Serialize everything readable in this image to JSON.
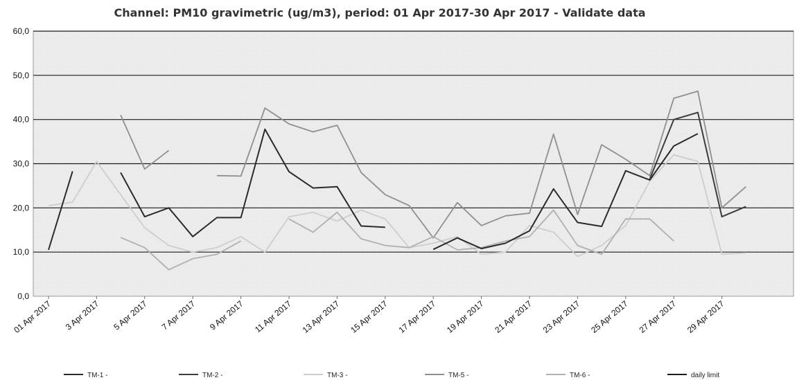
{
  "chart_data": {
    "type": "line",
    "title": "Channel: PM10 gravimetric (ug/m3), period: 01 Apr 2017-30 Apr 2017 - Validate data",
    "xlabel": "",
    "ylabel": "",
    "ylim": [
      0,
      60
    ],
    "y_ticks": [
      "0,0",
      "10,0",
      "20,0",
      "30,0",
      "40,0",
      "50,0",
      "60,0"
    ],
    "x_tick_labels": [
      "01 Apr 2017",
      "3 Apr 2017",
      "5 Apr 2017",
      "7 Apr 2017",
      "9 Apr 2017",
      "11 Apr 2017",
      "13 Apr 2017",
      "15 Apr 2017",
      "17 Apr 2017",
      "19 Apr 2017",
      "21 Apr 2017",
      "23 Apr 2017",
      "25 Apr 2017",
      "27 Apr 2017",
      "29 Apr 2017"
    ],
    "x_tick_days": [
      1,
      3,
      5,
      7,
      9,
      11,
      13,
      15,
      17,
      19,
      21,
      23,
      25,
      27,
      29
    ],
    "grid": "horizontal",
    "legend_position": "bottom",
    "series": [
      {
        "name": "TM-1 -",
        "color": "#2a2a2a",
        "values": [
          10.5,
          28.3,
          null,
          28.0,
          18.0,
          20.0,
          13.5,
          17.8,
          17.8,
          37.8,
          28.2,
          24.5,
          24.8,
          15.9,
          15.6,
          null,
          10.6,
          13.2,
          10.8,
          12.0,
          14.8,
          24.3,
          16.7,
          15.8,
          28.4,
          26.3,
          34.0,
          36.8,
          null,
          null
        ]
      },
      {
        "name": "TM-2 -",
        "color": "#3c3c3c",
        "values": [
          null,
          null,
          null,
          null,
          null,
          null,
          null,
          null,
          null,
          null,
          null,
          null,
          null,
          null,
          null,
          null,
          null,
          null,
          null,
          null,
          null,
          null,
          null,
          null,
          null,
          26.5,
          40.0,
          41.6,
          18.0,
          20.3
        ]
      },
      {
        "name": "TM-3 -",
        "color": "#cdcdcd",
        "values": [
          20.5,
          21.3,
          30.5,
          23.0,
          15.5,
          11.5,
          10.0,
          11.0,
          13.5,
          10.0,
          18.0,
          19.0,
          17.0,
          19.5,
          17.5,
          11.0,
          12.0,
          13.5,
          9.5,
          10.0,
          16.0,
          14.5,
          9.0,
          11.5,
          16.0,
          26.0,
          32.0,
          30.5,
          9.5,
          9.8
        ]
      },
      {
        "name": "TM-5 -",
        "color": "#8f8f8f",
        "values": [
          null,
          null,
          null,
          41.0,
          28.8,
          33.0,
          null,
          27.3,
          27.2,
          42.6,
          39.0,
          37.2,
          38.7,
          28.0,
          23.0,
          20.5,
          13.2,
          21.2,
          16.0,
          18.2,
          18.8,
          36.7,
          18.5,
          34.3,
          31.0,
          27.3,
          44.8,
          46.4,
          20.0,
          24.8
        ]
      },
      {
        "name": "TM-6 -",
        "color": "#b0b0b0",
        "values": [
          null,
          null,
          null,
          13.3,
          11.0,
          6.0,
          8.5,
          9.5,
          12.5,
          null,
          17.5,
          14.5,
          19.0,
          13.0,
          11.5,
          11.0,
          13.5,
          10.5,
          11.0,
          12.5,
          13.5,
          19.5,
          11.5,
          9.5,
          17.5,
          17.5,
          12.5,
          null,
          null,
          null
        ]
      },
      {
        "name": "daily limit",
        "color": "#1c1c1c",
        "values": [
          50,
          50,
          50,
          50,
          50,
          50,
          50,
          50,
          50,
          50,
          50,
          50,
          50,
          50,
          50,
          50,
          50,
          50,
          50,
          50,
          50,
          50,
          50,
          50,
          50,
          50,
          50,
          50,
          50,
          50
        ],
        "hidden_line": true
      }
    ]
  }
}
